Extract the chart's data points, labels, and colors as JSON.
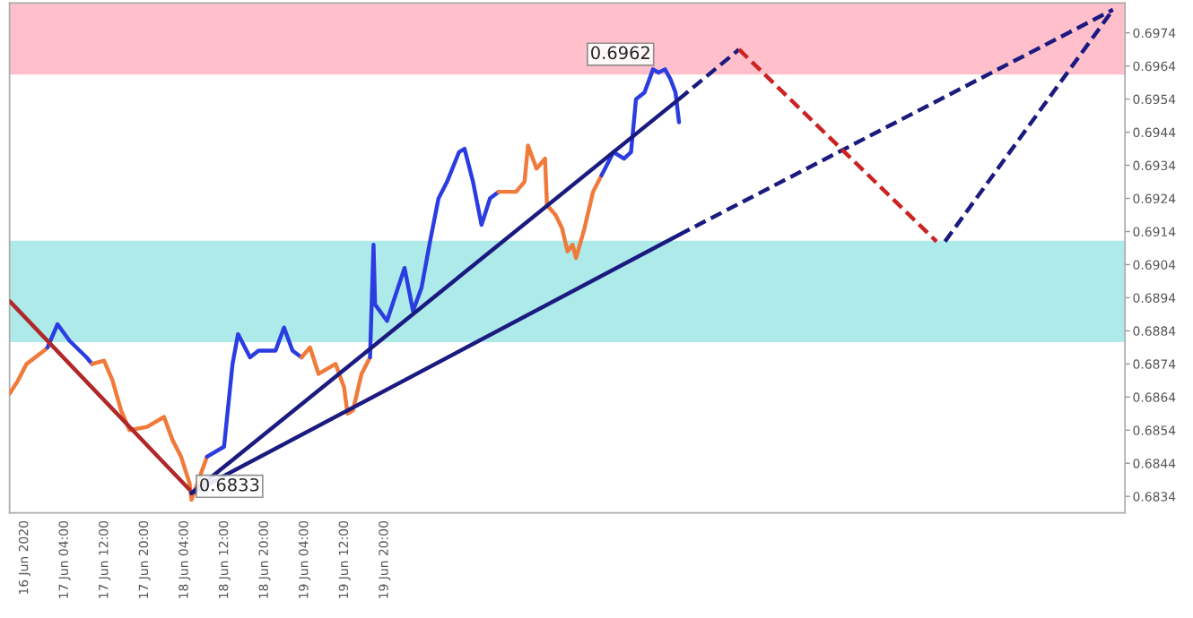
{
  "chart_data": {
    "type": "line",
    "xlim": [
      "2020-06-16T17:00",
      "2020-06-26T00:06"
    ],
    "ylim": [
      0.6829,
      0.6983
    ],
    "xticks": [
      {
        "value": "2020-06-16T20:00",
        "label": "16 Jun 2020"
      },
      {
        "value": "2020-06-17T04:00",
        "label": "17 Jun 04:00"
      },
      {
        "value": "2020-06-17T12:00",
        "label": "17 Jun 12:00"
      },
      {
        "value": "2020-06-17T20:00",
        "label": "17 Jun 20:00"
      },
      {
        "value": "2020-06-18T04:00",
        "label": "18 Jun 04:00"
      },
      {
        "value": "2020-06-18T12:00",
        "label": "18 Jun 12:00"
      },
      {
        "value": "2020-06-18T20:00",
        "label": "18 Jun 20:00"
      },
      {
        "value": "2020-06-19T04:00",
        "label": "19 Jun 04:00"
      },
      {
        "value": "2020-06-19T12:00",
        "label": "19 Jun 12:00"
      },
      {
        "value": "2020-06-19T20:00",
        "label": "19 Jun 20:00"
      }
    ],
    "yticks": [
      0.6834,
      0.6844,
      0.6854,
      0.6864,
      0.6874,
      0.6884,
      0.6894,
      0.6904,
      0.6914,
      0.6924,
      0.6934,
      0.6944,
      0.6954,
      0.6964,
      0.6974
    ],
    "bands": [
      {
        "axis": "y",
        "from": 0.69614,
        "to": 0.6983,
        "color": "#ffc0cb"
      },
      {
        "axis": "y",
        "from": 0.68806,
        "to": 0.69112,
        "color": "#aeeaea"
      }
    ],
    "grid": false,
    "legend": false,
    "annotations": [
      {
        "text": "0.6962",
        "x": "2020-06-22T02:48",
        "y": 0.6962
      },
      {
        "text": "0.6833",
        "x": "2020-06-18T05:24",
        "y": 0.6833
      }
    ],
    "series": [
      {
        "color": "#f07a3a",
        "x": [
          "2020-06-16T17:00",
          "2020-06-16T18:42",
          "2020-06-16T20:24",
          "2020-06-16T23:54",
          "2020-06-17T00:36"
        ],
        "values": [
          0.6865,
          0.6869,
          0.6874,
          0.6878,
          0.6879
        ]
      },
      {
        "color": "#2b3de0",
        "x": [
          "2020-06-17T00:36",
          "2020-06-17T02:36",
          "2020-06-17T05:00",
          "2020-06-17T08:24",
          "2020-06-17T09:30"
        ],
        "values": [
          0.6879,
          0.6886,
          0.6881,
          0.6876,
          0.6874
        ]
      },
      {
        "color": "#f07a3a",
        "x": [
          "2020-06-17T09:30",
          "2020-06-17T11:54",
          "2020-06-17T13:36",
          "2020-06-17T15:18",
          "2020-06-17T17:00",
          "2020-06-17T20:30",
          "2020-06-17T23:54",
          "2020-06-18T01:36",
          "2020-06-18T03:18",
          "2020-06-18T05:00",
          "2020-06-18T05:24",
          "2020-06-18T08:30"
        ],
        "values": [
          0.6874,
          0.6875,
          0.6869,
          0.686,
          0.6854,
          0.6855,
          0.6858,
          0.6851,
          0.6846,
          0.6838,
          0.6833,
          0.6846
        ]
      },
      {
        "color": "#2b3de0",
        "x": [
          "2020-06-18T08:30",
          "2020-06-18T11:54",
          "2020-06-18T13:36",
          "2020-06-18T14:42",
          "2020-06-18T17:06",
          "2020-06-18T18:48",
          "2020-06-18T22:12",
          "2020-06-18T23:54",
          "2020-06-19T01:36",
          "2020-06-19T03:24"
        ],
        "values": [
          0.6846,
          0.6849,
          0.6874,
          0.6883,
          0.6876,
          0.6878,
          0.6878,
          0.6885,
          0.6878,
          0.6876
        ]
      },
      {
        "color": "#f07a3a",
        "x": [
          "2020-06-19T03:24",
          "2020-06-19T05:06",
          "2020-06-19T06:48",
          "2020-06-19T10:12",
          "2020-06-19T11:54",
          "2020-06-19T12:36",
          "2020-06-19T13:42",
          "2020-06-19T15:24",
          "2020-06-19T17:06"
        ],
        "values": [
          0.6876,
          0.6879,
          0.6871,
          0.6874,
          0.6867,
          0.6859,
          0.686,
          0.6871,
          0.6876
        ]
      },
      {
        "color": "#2b3de0",
        "x": [
          "2020-06-19T17:06",
          "2020-06-19T17:48",
          "2020-06-19T18:06",
          "2020-06-19T20:30",
          "2020-06-20T00:00",
          "2020-06-20T01:42",
          "2020-06-20T03:24",
          "2020-06-20T05:06",
          "2020-06-20T06:48",
          "2020-06-20T08:30",
          "2020-06-20T10:54",
          "2020-06-20T12:00",
          "2020-06-20T13:42",
          "2020-06-20T15:24",
          "2020-06-20T17:06",
          "2020-06-20T18:48"
        ],
        "values": [
          0.6876,
          0.691,
          0.6892,
          0.6887,
          0.6903,
          0.689,
          0.6897,
          0.6911,
          0.6924,
          0.6929,
          0.6938,
          0.6939,
          0.6929,
          0.6916,
          0.6924,
          0.6926
        ]
      },
      {
        "color": "#f07a3a",
        "x": [
          "2020-06-20T18:48",
          "2020-06-20T20:36",
          "2020-06-20T22:18",
          "2020-06-21T00:00",
          "2020-06-21T00:42",
          "2020-06-21T02:24",
          "2020-06-21T04:06",
          "2020-06-21T04:30",
          "2020-06-21T06:12",
          "2020-06-21T07:30",
          "2020-06-21T08:36",
          "2020-06-21T09:36",
          "2020-06-21T10:18",
          "2020-06-21T12:00",
          "2020-06-21T13:42",
          "2020-06-21T15:24"
        ],
        "values": [
          0.6926,
          0.6926,
          0.6926,
          0.6929,
          0.694,
          0.6933,
          0.6936,
          0.6922,
          0.6919,
          0.6915,
          0.6908,
          0.691,
          0.6906,
          0.6915,
          0.6926,
          0.6931
        ]
      },
      {
        "color": "#2b3de0",
        "x": [
          "2020-06-21T15:24",
          "2020-06-21T16:06",
          "2020-06-21T17:48",
          "2020-06-21T19:54",
          "2020-06-21T21:18",
          "2020-06-21T22:18",
          "2020-06-22T00:00",
          "2020-06-22T01:42",
          "2020-06-22T02:48",
          "2020-06-22T04:06",
          "2020-06-22T05:12",
          "2020-06-22T06:12",
          "2020-06-22T06:54"
        ],
        "values": [
          0.6931,
          0.6933,
          0.6938,
          0.6936,
          0.6938,
          0.6954,
          0.6956,
          0.6963,
          0.6962,
          0.6963,
          0.696,
          0.6956,
          0.6947
        ]
      },
      {
        "color": "#b0282a",
        "x": [
          "2020-06-16T17:00",
          "2020-06-18T05:00"
        ],
        "values": [
          0.6893,
          0.6836
        ]
      },
      {
        "color": "#1a1a80",
        "x": [
          "2020-06-18T05:24",
          "2020-06-22T06:54"
        ],
        "values": [
          0.6835,
          0.6954
        ]
      },
      {
        "color": "#1a1a80",
        "line_style": "dashed",
        "x": [
          "2020-06-22T06:54",
          "2020-06-22T18:54"
        ],
        "values": [
          0.6954,
          0.6969
        ]
      },
      {
        "color": "#1a1a80",
        "x": [
          "2020-06-18T05:24",
          "2020-06-22T06:54"
        ],
        "values": [
          0.6835,
          0.6913
        ]
      },
      {
        "color": "#1a1a80",
        "line_style": "dashed",
        "x": [
          "2020-06-22T06:54",
          "2020-06-25T21:42"
        ],
        "values": [
          0.6913,
          0.6981
        ]
      },
      {
        "color": "#cc2222",
        "line_style": "dashed",
        "x": [
          "2020-06-22T18:54",
          "2020-06-24T10:24"
        ],
        "values": [
          0.6969,
          0.6911
        ]
      },
      {
        "color": "#1a1a80",
        "line_style": "dashed",
        "x": [
          "2020-06-24T12:06",
          "2020-06-25T21:42"
        ],
        "values": [
          0.6911,
          0.6981
        ]
      }
    ]
  }
}
